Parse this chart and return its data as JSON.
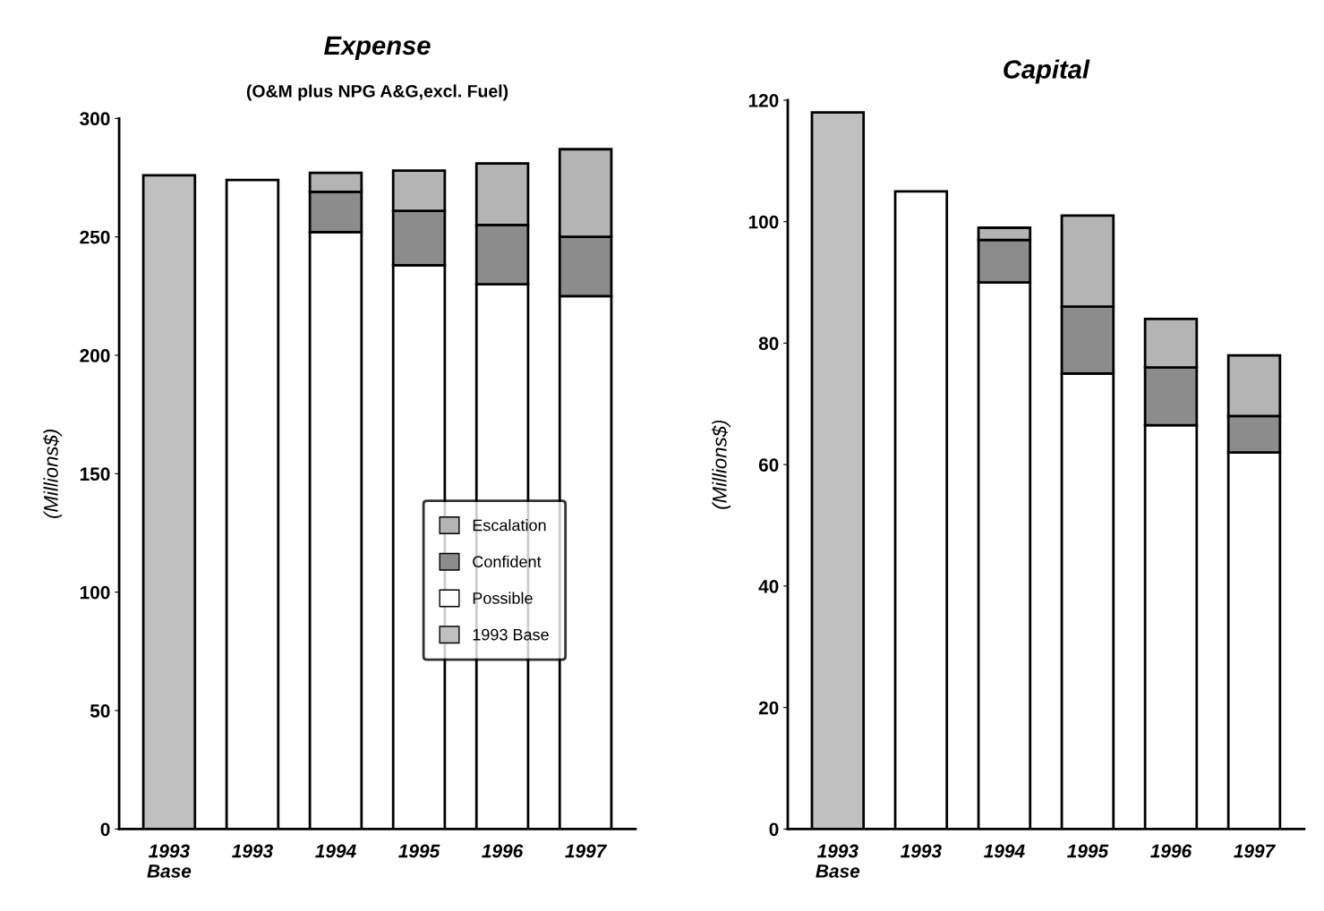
{
  "chart_data": [
    {
      "type": "bar",
      "stacked": true,
      "title": "Expense",
      "subtitle": "(O&M plus NPG A&G,excl. Fuel)",
      "ylabel": "(Millions$)",
      "categories": [
        "1993\nBase",
        "1993",
        "1994",
        "1995",
        "1996",
        "1997"
      ],
      "series": [
        {
          "name": "1993 Base",
          "color": "#c0c0c0",
          "values": [
            276,
            null,
            null,
            null,
            null,
            null
          ]
        },
        {
          "name": "Possible",
          "color": "#ffffff",
          "values": [
            null,
            274,
            252,
            238,
            230,
            225
          ]
        },
        {
          "name": "Confident",
          "color": "#8c8c8c",
          "values": [
            null,
            null,
            17,
            23,
            25,
            25
          ]
        },
        {
          "name": "Escalation",
          "color": "#b4b4b4",
          "values": [
            null,
            null,
            8,
            17,
            26,
            37
          ]
        }
      ],
      "ylim": [
        0,
        300
      ],
      "yticks": [
        0,
        50,
        100,
        150,
        200,
        250,
        300
      ],
      "grid": false,
      "legend": "center right"
    },
    {
      "type": "bar",
      "stacked": true,
      "title": "Capital",
      "ylabel": "(Millions$)",
      "categories": [
        "1993\nBase",
        "1993",
        "1994",
        "1995",
        "1996",
        "1997"
      ],
      "series": [
        {
          "color": "#c0c0c0",
          "values": [
            118,
            null,
            null,
            null,
            null,
            null
          ]
        },
        {
          "color": "#ffffff",
          "values": [
            null,
            105,
            90,
            75,
            66.5,
            62
          ]
        },
        {
          "color": "#8c8c8c",
          "values": [
            null,
            null,
            7,
            11,
            9.5,
            6
          ]
        },
        {
          "color": "#b4b4b4",
          "values": [
            null,
            null,
            2,
            15,
            8,
            10
          ]
        }
      ],
      "ylim": [
        0,
        120
      ],
      "yticks": [
        0,
        20,
        40,
        60,
        80,
        100,
        120
      ],
      "grid": false,
      "legend": false
    }
  ]
}
